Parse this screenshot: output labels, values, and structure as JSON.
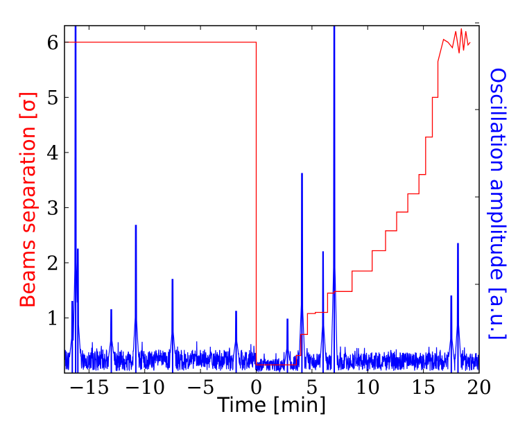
{
  "chart_data": {
    "type": "line",
    "xlabel": "Time [min]",
    "ylabel_left": "Beams separation [σ]",
    "ylabel_right": "Oscillation amplitude [a.u.]",
    "xlim": [
      -17.2,
      20
    ],
    "ylim_left": [
      0,
      6.3
    ],
    "x_ticks": [
      -15,
      -10,
      -5,
      0,
      5,
      10,
      15,
      20
    ],
    "x_tick_labels": [
      "−15",
      "−10",
      "−5",
      "0",
      "5",
      "10",
      "15",
      "20"
    ],
    "y_ticks_left": [
      1,
      2,
      3,
      4,
      5,
      6
    ],
    "y_tick_labels_left": [
      "1",
      "2",
      "3",
      "4",
      "5",
      "6"
    ],
    "grid": false,
    "colors": {
      "separation": "#ff0000",
      "oscillation": "#0000ff",
      "axes": "#000000"
    },
    "series": [
      {
        "axis": "left",
        "color": "#ff0000",
        "x": [
          -17.2,
          0,
          0,
          3,
          3.6,
          3.6,
          4.0,
          4.0,
          4.6,
          4.6,
          5.3,
          5.3,
          6.4,
          6.4,
          7.0,
          7.0,
          8.6,
          8.6,
          10.4,
          10.4,
          11.6,
          11.6,
          12.6,
          12.6,
          13.6,
          13.6,
          14.6,
          14.6,
          15.2,
          15.2,
          15.8,
          15.8,
          16.3,
          16.3,
          16.8,
          17.2,
          17.6,
          17.9,
          18.2,
          18.4,
          18.6,
          18.8,
          19.0,
          19.2
        ],
        "y": [
          6.0,
          6.0,
          0.15,
          0.15,
          0.15,
          0.32,
          0.32,
          0.7,
          0.7,
          1.08,
          1.08,
          1.1,
          1.1,
          1.45,
          1.45,
          1.48,
          1.48,
          1.85,
          1.85,
          2.22,
          2.22,
          2.58,
          2.58,
          2.92,
          2.92,
          3.25,
          3.25,
          3.6,
          3.6,
          4.28,
          4.28,
          5.0,
          5.0,
          5.65,
          6.05,
          6.0,
          5.9,
          6.2,
          5.8,
          6.25,
          5.85,
          6.2,
          5.95,
          6.0
        ]
      },
      {
        "axis": "right",
        "color": "#0000ff",
        "peaks": [
          {
            "x": -16.5,
            "y": 1.3
          },
          {
            "x": -16.2,
            "y": 6.3
          },
          {
            "x": -16.0,
            "y": 2.25
          },
          {
            "x": -13.0,
            "y": 1.15
          },
          {
            "x": -10.8,
            "y": 2.68
          },
          {
            "x": -7.5,
            "y": 1.7
          },
          {
            "x": -1.8,
            "y": 1.12
          },
          {
            "x": 2.8,
            "y": 0.98
          },
          {
            "x": 4.1,
            "y": 3.62
          },
          {
            "x": 6.0,
            "y": 2.2
          },
          {
            "x": 7.0,
            "y": 6.3
          },
          {
            "x": 17.5,
            "y": 1.4
          },
          {
            "x": 18.1,
            "y": 2.35
          }
        ]
      }
    ]
  }
}
